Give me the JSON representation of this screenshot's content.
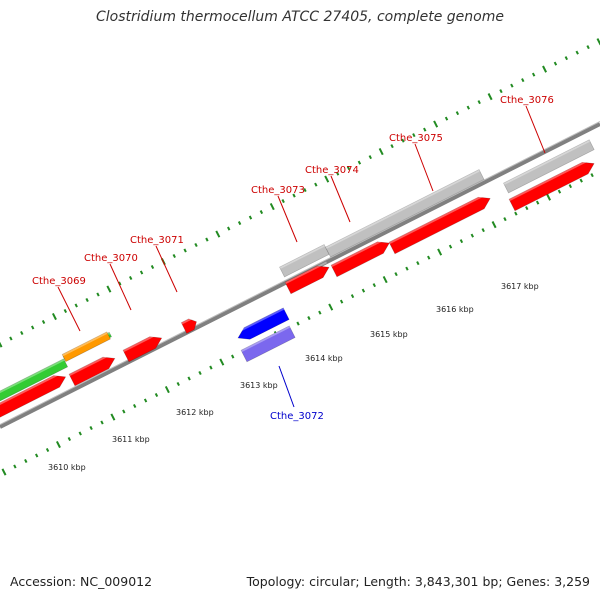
{
  "title": "Clostridium thermocellum ATCC 27405, complete genome",
  "footer": {
    "accession": "Accession: NC_009012",
    "topology": "Topology: circular; Length: 3,843,301 bp; Genes: 3,259"
  },
  "colors": {
    "forward_cds": "#ff0000",
    "reverse_cds": "#0000ff",
    "reverse_alt": "#7b68ee",
    "pseudo_gene": "#c0c0c0",
    "rna_gene": "#ff9900",
    "other_gene": "#33cc33",
    "backbone": "#808080",
    "tick": "#228b22",
    "label_forward": "#cc0000",
    "label_reverse": "#0000cc"
  },
  "kbp_labels": [
    "3610 kbp",
    "3611 kbp",
    "3612 kbp",
    "3613 kbp",
    "3614 kbp",
    "3615 kbp",
    "3616 kbp",
    "3617 kbp"
  ],
  "gene_labels": [
    {
      "name": "Cthe_3069",
      "strand": "forward"
    },
    {
      "name": "Cthe_3070",
      "strand": "forward"
    },
    {
      "name": "Cthe_3071",
      "strand": "forward"
    },
    {
      "name": "Cthe_3072",
      "strand": "reverse"
    },
    {
      "name": "Cthe_3073",
      "strand": "forward"
    },
    {
      "name": "Cthe_3074",
      "strand": "forward"
    },
    {
      "name": "Cthe_3075",
      "strand": "forward"
    },
    {
      "name": "Cthe_3076",
      "strand": "forward"
    }
  ]
}
